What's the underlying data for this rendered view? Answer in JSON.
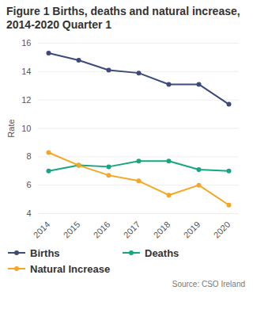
{
  "chart_data": {
    "type": "line",
    "title": "Figure 1 Births, deaths and natural increase, 2014-2020 Quarter 1",
    "categories": [
      "2014",
      "2015",
      "2016",
      "2017",
      "2018",
      "2019",
      "2020"
    ],
    "y_label": "Rate",
    "series": [
      {
        "name": "Births",
        "color": "#3d4a7a",
        "marker": "circle",
        "line_style": "solid",
        "values": [
          15.3,
          14.8,
          14.1,
          13.9,
          13.1,
          13.1,
          11.7
        ]
      },
      {
        "name": "Deaths",
        "color": "#16a683",
        "marker": "circle",
        "line_style": "solid",
        "values": [
          7.0,
          7.4,
          7.3,
          7.7,
          7.7,
          7.1,
          7.0
        ]
      },
      {
        "name": "Natural Increase",
        "color": "#f5a623",
        "marker": "circle",
        "line_style": "solid",
        "values": [
          8.3,
          7.4,
          6.7,
          6.3,
          5.3,
          6.0,
          4.6
        ]
      }
    ],
    "ylim": [
      4,
      16
    ],
    "yticks": [
      4,
      6,
      8,
      10,
      12,
      14,
      16
    ],
    "grid": true,
    "legend": "bottom",
    "caption": "Source: CSO Ireland"
  }
}
